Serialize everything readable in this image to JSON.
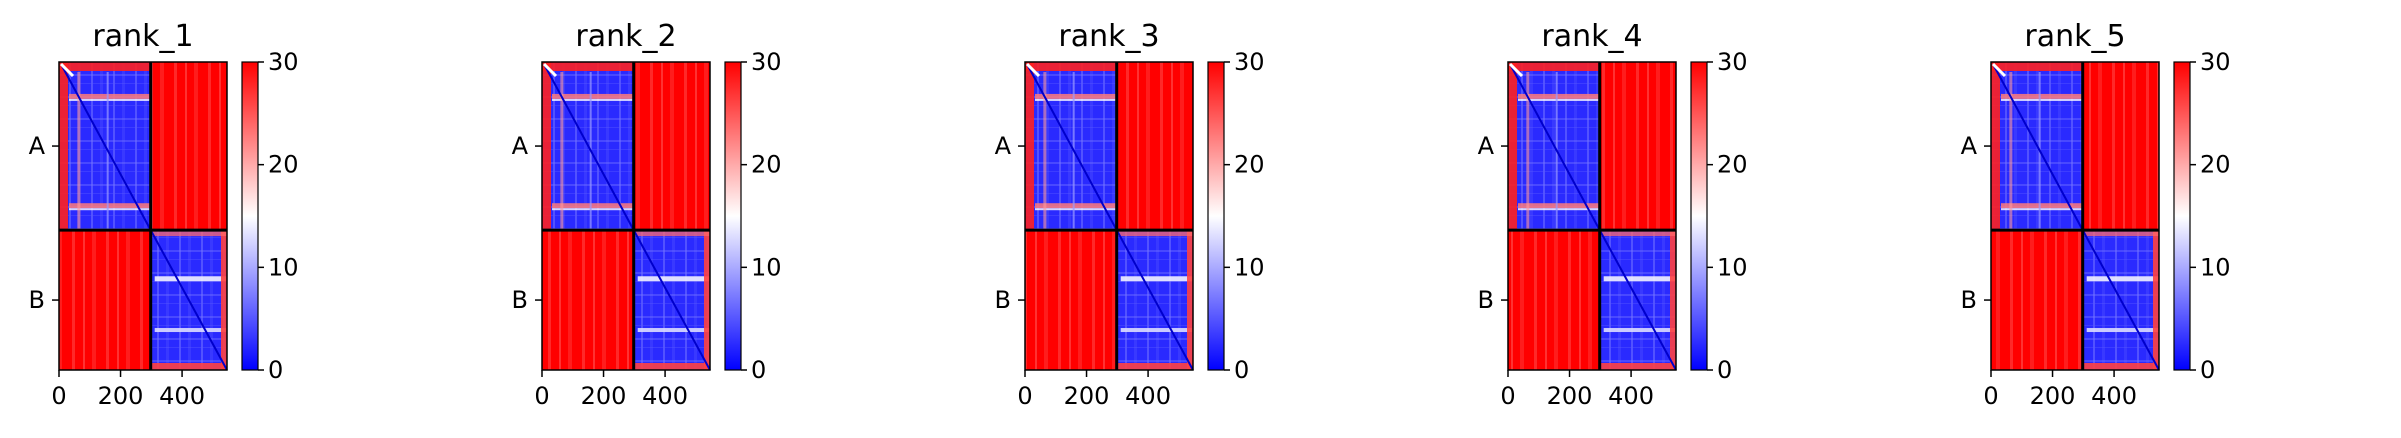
{
  "figure": {
    "panels": [
      "rank_1",
      "rank_2",
      "rank_3",
      "rank_4",
      "rank_5"
    ],
    "colorbar": {
      "ticks": [
        "0",
        "10",
        "20",
        "30"
      ],
      "vmin": 0,
      "vmax": 30,
      "colormap": "bwr"
    },
    "colors": {
      "low": "#0000ff",
      "mid": "#ffffff",
      "high": "#ff0000"
    }
  },
  "chart_data": [
    {
      "type": "heatmap",
      "title": "rank_1",
      "x_ticks": [
        "0",
        "200",
        "400"
      ],
      "x_tick_values": [
        0,
        200,
        400
      ],
      "y_ticks": [
        "A",
        "B"
      ],
      "xlim": [
        0,
        546
      ],
      "chain_boundary": 298,
      "value_range": [
        0,
        30
      ],
      "blocks": [
        {
          "rows": "A",
          "cols": "A",
          "mean": 5
        },
        {
          "rows": "A",
          "cols": "B",
          "mean": 29
        },
        {
          "rows": "B",
          "cols": "A",
          "mean": 29
        },
        {
          "rows": "B",
          "cols": "B",
          "mean": 5
        }
      ]
    },
    {
      "type": "heatmap",
      "title": "rank_2",
      "x_ticks": [
        "0",
        "200",
        "400"
      ],
      "x_tick_values": [
        0,
        200,
        400
      ],
      "y_ticks": [
        "A",
        "B"
      ],
      "xlim": [
        0,
        546
      ],
      "chain_boundary": 298,
      "value_range": [
        0,
        30
      ],
      "blocks": [
        {
          "rows": "A",
          "cols": "A",
          "mean": 5
        },
        {
          "rows": "A",
          "cols": "B",
          "mean": 28
        },
        {
          "rows": "B",
          "cols": "A",
          "mean": 28
        },
        {
          "rows": "B",
          "cols": "B",
          "mean": 5
        }
      ]
    },
    {
      "type": "heatmap",
      "title": "rank_3",
      "x_ticks": [
        "0",
        "200",
        "400"
      ],
      "x_tick_values": [
        0,
        200,
        400
      ],
      "y_ticks": [
        "A",
        "B"
      ],
      "xlim": [
        0,
        546
      ],
      "chain_boundary": 298,
      "value_range": [
        0,
        30
      ],
      "blocks": [
        {
          "rows": "A",
          "cols": "A",
          "mean": 5
        },
        {
          "rows": "A",
          "cols": "B",
          "mean": 28
        },
        {
          "rows": "B",
          "cols": "A",
          "mean": 28
        },
        {
          "rows": "B",
          "cols": "B",
          "mean": 5
        }
      ]
    },
    {
      "type": "heatmap",
      "title": "rank_4",
      "x_ticks": [
        "0",
        "200",
        "400"
      ],
      "x_tick_values": [
        0,
        200,
        400
      ],
      "y_ticks": [
        "A",
        "B"
      ],
      "xlim": [
        0,
        546
      ],
      "chain_boundary": 298,
      "value_range": [
        0,
        30
      ],
      "blocks": [
        {
          "rows": "A",
          "cols": "A",
          "mean": 5
        },
        {
          "rows": "A",
          "cols": "B",
          "mean": 28
        },
        {
          "rows": "B",
          "cols": "A",
          "mean": 28
        },
        {
          "rows": "B",
          "cols": "B",
          "mean": 5
        }
      ]
    },
    {
      "type": "heatmap",
      "title": "rank_5",
      "x_ticks": [
        "0",
        "200",
        "400"
      ],
      "x_tick_values": [
        0,
        200,
        400
      ],
      "y_ticks": [
        "A",
        "B"
      ],
      "xlim": [
        0,
        546
      ],
      "chain_boundary": 298,
      "value_range": [
        0,
        30
      ],
      "blocks": [
        {
          "rows": "A",
          "cols": "A",
          "mean": 5
        },
        {
          "rows": "A",
          "cols": "B",
          "mean": 29
        },
        {
          "rows": "B",
          "cols": "A",
          "mean": 29
        },
        {
          "rows": "B",
          "cols": "B",
          "mean": 5
        }
      ]
    }
  ]
}
